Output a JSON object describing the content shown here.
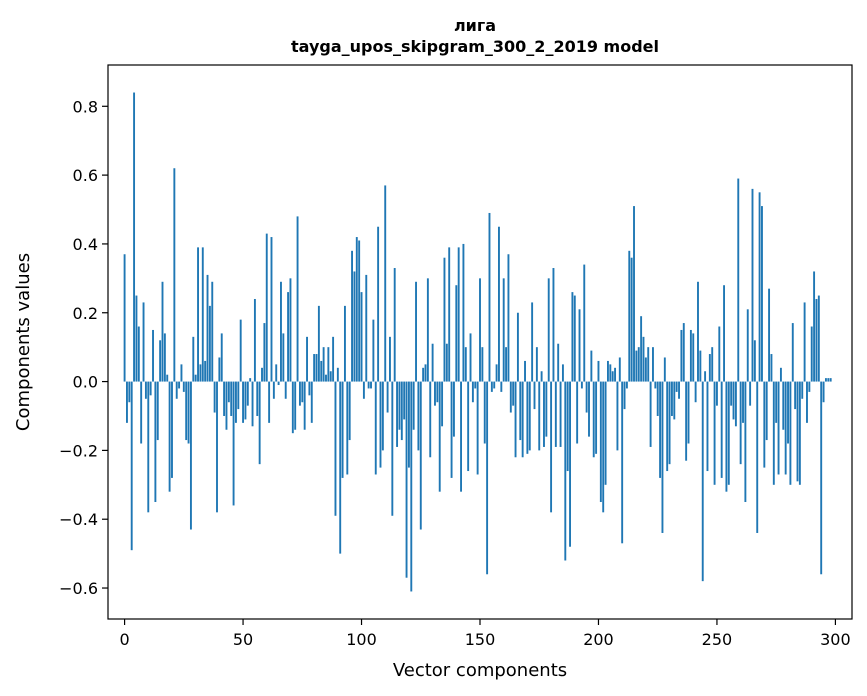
{
  "chart_data": {
    "type": "bar",
    "title": "лига",
    "subtitle": "tayga_upos_skipgram_300_2_2019 model",
    "xlabel": "Vector components",
    "ylabel": "Components values",
    "xlim": [
      -7,
      307
    ],
    "ylim": [
      -0.69,
      0.92
    ],
    "xticks": [
      0,
      50,
      100,
      150,
      200,
      250,
      300
    ],
    "xtick_labels": [
      "0",
      "50",
      "100",
      "150",
      "200",
      "250",
      "300"
    ],
    "yticks": [
      -0.6,
      -0.4,
      -0.2,
      0.0,
      0.2,
      0.4,
      0.6,
      0.8
    ],
    "ytick_labels": [
      "−0.6",
      "−0.4",
      "−0.2",
      "0.0",
      "0.2",
      "0.4",
      "0.6",
      "0.8"
    ],
    "grid": false,
    "bar_color": "#1f77b4",
    "values": [
      0.37,
      -0.12,
      -0.06,
      -0.49,
      0.84,
      0.25,
      0.16,
      -0.18,
      0.23,
      -0.05,
      -0.38,
      -0.04,
      0.15,
      -0.35,
      -0.17,
      0.12,
      0.29,
      0.14,
      0.02,
      -0.32,
      -0.28,
      0.62,
      -0.05,
      -0.02,
      0.05,
      -0.03,
      -0.17,
      -0.18,
      -0.43,
      0.13,
      0.02,
      0.39,
      0.05,
      0.39,
      0.06,
      0.31,
      0.22,
      0.29,
      -0.09,
      -0.38,
      0.07,
      0.14,
      -0.1,
      -0.14,
      -0.06,
      -0.1,
      -0.36,
      -0.12,
      -0.08,
      0.18,
      -0.12,
      -0.11,
      -0.07,
      0.01,
      -0.13,
      0.24,
      -0.1,
      -0.24,
      0.04,
      0.17,
      0.43,
      -0.12,
      0.42,
      -0.05,
      0.05,
      -0.01,
      0.29,
      0.14,
      -0.05,
      0.26,
      0.3,
      -0.15,
      -0.14,
      0.48,
      -0.07,
      -0.06,
      -0.14,
      0.13,
      -0.04,
      -0.12,
      0.08,
      0.08,
      0.22,
      0.06,
      0.1,
      0.02,
      0.1,
      0.03,
      0.13,
      -0.39,
      0.04,
      -0.5,
      -0.28,
      0.22,
      -0.27,
      -0.17,
      0.38,
      0.32,
      0.42,
      0.41,
      0.26,
      -0.05,
      0.31,
      -0.02,
      -0.02,
      0.18,
      -0.27,
      0.45,
      -0.25,
      -0.2,
      0.57,
      -0.09,
      0.13,
      -0.39,
      0.33,
      -0.19,
      -0.14,
      -0.17,
      -0.11,
      -0.57,
      -0.25,
      -0.61,
      -0.14,
      0.29,
      -0.2,
      -0.43,
      0.04,
      0.05,
      0.3,
      -0.22,
      0.11,
      -0.07,
      -0.06,
      -0.32,
      -0.13,
      0.36,
      0.11,
      0.39,
      -0.28,
      -0.16,
      0.28,
      0.39,
      -0.32,
      0.4,
      0.1,
      -0.26,
      0.14,
      -0.06,
      -0.02,
      -0.27,
      0.3,
      0.1,
      -0.18,
      -0.56,
      0.49,
      -0.03,
      -0.02,
      0.05,
      0.45,
      -0.03,
      0.3,
      0.1,
      0.37,
      -0.09,
      -0.07,
      -0.22,
      0.2,
      -0.17,
      -0.22,
      0.06,
      -0.21,
      -0.2,
      0.23,
      -0.08,
      0.1,
      -0.2,
      0.03,
      -0.19,
      -0.16,
      0.3,
      -0.38,
      0.33,
      -0.19,
      0.11,
      -0.19,
      0.05,
      -0.52,
      -0.26,
      -0.48,
      0.26,
      0.25,
      -0.18,
      0.21,
      -0.02,
      0.34,
      -0.09,
      -0.16,
      0.09,
      -0.22,
      -0.21,
      0.06,
      -0.35,
      -0.38,
      -0.3,
      0.06,
      0.05,
      0.03,
      0.04,
      -0.2,
      0.07,
      -0.47,
      -0.08,
      -0.02,
      0.38,
      0.36,
      0.51,
      0.09,
      0.1,
      0.19,
      0.13,
      0.07,
      0.1,
      -0.19,
      0.1,
      -0.02,
      -0.1,
      -0.28,
      -0.44,
      0.07,
      -0.26,
      -0.24,
      -0.1,
      -0.11,
      -0.03,
      -0.05,
      0.15,
      0.17,
      -0.23,
      -0.18,
      0.15,
      0.14,
      -0.06,
      0.29,
      0.09,
      -0.58,
      0.03,
      -0.26,
      0.08,
      0.1,
      -0.3,
      -0.07,
      0.16,
      -0.28,
      0.28,
      -0.32,
      -0.3,
      -0.07,
      -0.11,
      -0.13,
      0.59,
      -0.24,
      -0.12,
      -0.35,
      0.21,
      -0.07,
      0.56,
      0.12,
      -0.44,
      0.55,
      0.51,
      -0.25,
      -0.17,
      0.27,
      0.08,
      -0.3,
      -0.12,
      -0.27,
      0.04,
      -0.14,
      -0.27,
      -0.18,
      -0.3,
      0.17,
      -0.08,
      -0.29,
      -0.3,
      -0.05,
      0.23,
      -0.12,
      -0.03,
      0.16,
      0.32,
      0.24,
      0.25,
      -0.56,
      -0.06,
      0.01,
      0.01,
      0.01
    ]
  }
}
